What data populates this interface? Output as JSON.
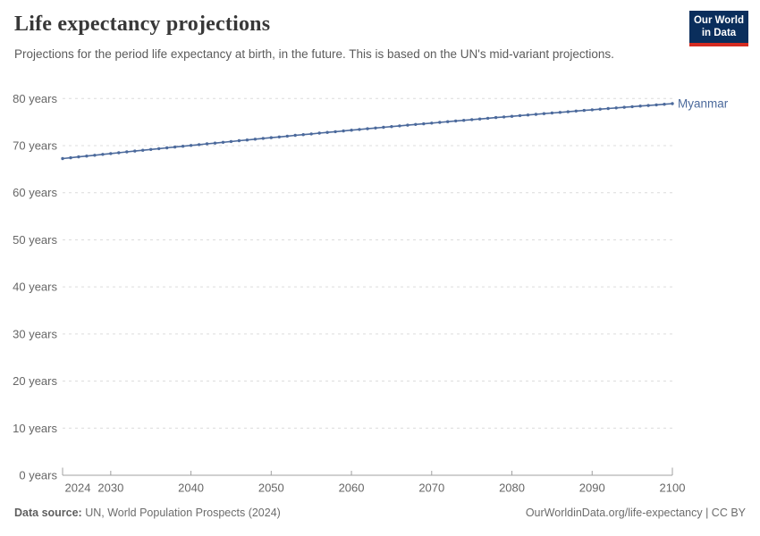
{
  "header": {
    "title": "Life expectancy projections",
    "subtitle": "Projections for the period life expectancy at birth, in the future. This is based on the UN's mid-variant projections."
  },
  "logo": {
    "line1": "Our World",
    "line2": "in Data"
  },
  "colors": {
    "series_blue": "#4C6A9C",
    "logo_navy": "#0A2E5C",
    "logo_red": "#D42B21",
    "grid": "#dcdcdc",
    "axis": "#a0a0a0",
    "tick_text": "#666666"
  },
  "chart_data": {
    "type": "line",
    "title": "Life expectancy projections",
    "x_ticks": [
      2024,
      2030,
      2040,
      2050,
      2060,
      2070,
      2080,
      2090,
      2100
    ],
    "y_ticks": [
      0,
      10,
      20,
      30,
      40,
      50,
      60,
      70,
      80
    ],
    "y_tick_suffix": " years",
    "xlim": [
      2024,
      2100
    ],
    "ylim": [
      0,
      80
    ],
    "grid": "dashed-horizontal",
    "legend": "end-of-line-label",
    "series": [
      {
        "name": "Myanmar",
        "years": [
          2024,
          2025,
          2026,
          2027,
          2028,
          2029,
          2030,
          2031,
          2032,
          2033,
          2034,
          2035,
          2036,
          2037,
          2038,
          2039,
          2040,
          2041,
          2042,
          2043,
          2044,
          2045,
          2046,
          2047,
          2048,
          2049,
          2050,
          2051,
          2052,
          2053,
          2054,
          2055,
          2056,
          2057,
          2058,
          2059,
          2060,
          2061,
          2062,
          2063,
          2064,
          2065,
          2066,
          2067,
          2068,
          2069,
          2070,
          2071,
          2072,
          2073,
          2074,
          2075,
          2076,
          2077,
          2078,
          2079,
          2080,
          2081,
          2082,
          2083,
          2084,
          2085,
          2086,
          2087,
          2088,
          2089,
          2090,
          2091,
          2092,
          2093,
          2094,
          2095,
          2096,
          2097,
          2098,
          2099,
          2100
        ],
        "values": [
          67.25,
          67.43,
          67.61,
          67.79,
          67.96,
          68.14,
          68.32,
          68.49,
          68.67,
          68.84,
          69.02,
          69.19,
          69.36,
          69.53,
          69.7,
          69.87,
          70.04,
          70.21,
          70.38,
          70.54,
          70.71,
          70.88,
          71.04,
          71.2,
          71.37,
          71.53,
          71.69,
          71.85,
          72.02,
          72.18,
          72.34,
          72.49,
          72.65,
          72.81,
          72.97,
          73.12,
          73.28,
          73.43,
          73.58,
          73.74,
          73.89,
          74.04,
          74.19,
          74.34,
          74.49,
          74.64,
          74.79,
          74.94,
          75.08,
          75.23,
          75.38,
          75.52,
          75.66,
          75.81,
          75.95,
          76.09,
          76.23,
          76.37,
          76.51,
          76.65,
          76.79,
          76.93,
          77.06,
          77.2,
          77.34,
          77.47,
          77.61,
          77.74,
          77.87,
          78.0,
          78.14,
          78.27,
          78.4,
          78.52,
          78.65,
          78.78,
          78.91
        ]
      }
    ]
  },
  "footer": {
    "data_source_label": "Data source:",
    "data_source_value": " UN, World Population Prospects (2024)",
    "attribution": "OurWorldinData.org/life-expectancy | CC BY"
  }
}
